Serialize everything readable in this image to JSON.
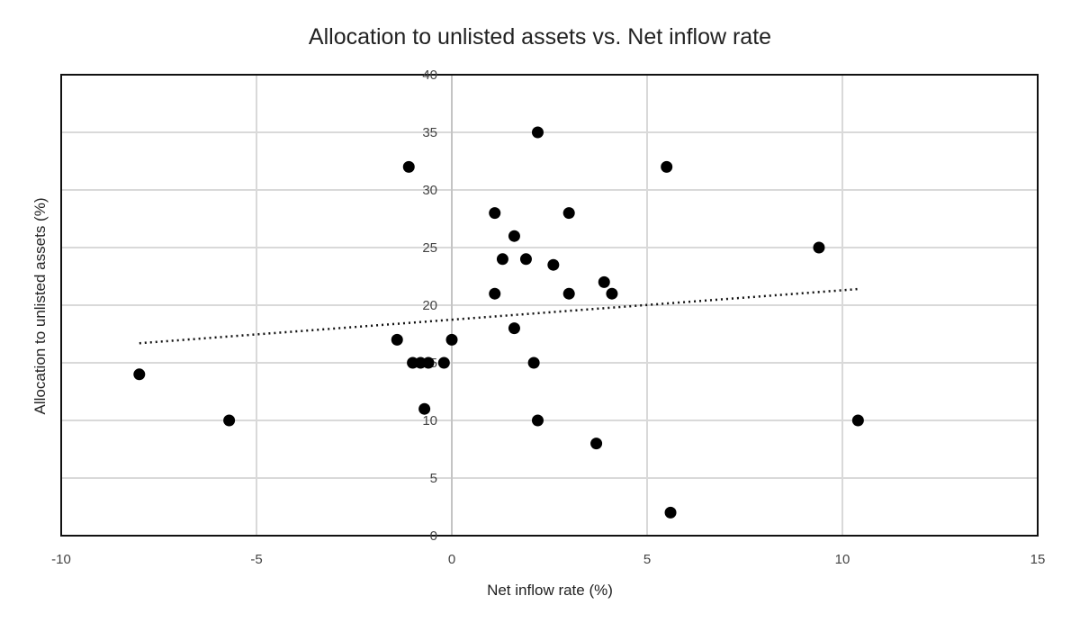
{
  "chart_data": {
    "type": "scatter",
    "title": "Allocation to unlisted assets vs. Net inflow rate",
    "xlabel": "Net inflow rate (%)",
    "ylabel": "Allocation to unlisted assets (%)",
    "xlim": [
      -10,
      15
    ],
    "ylim": [
      0,
      40
    ],
    "x_ticks": [
      -10,
      -5,
      0,
      5,
      10,
      15
    ],
    "y_ticks": [
      0,
      5,
      10,
      15,
      20,
      25,
      30,
      35,
      40
    ],
    "grid": true,
    "legend": "none",
    "marker_color": "#000000",
    "trendline": {
      "style": "dotted",
      "color": "#111111",
      "points": [
        [
          -8.0,
          16.7
        ],
        [
          10.4,
          21.4
        ]
      ]
    },
    "points": [
      {
        "x": -8.0,
        "y": 14
      },
      {
        "x": -5.7,
        "y": 10
      },
      {
        "x": -1.1,
        "y": 32
      },
      {
        "x": -1.4,
        "y": 17
      },
      {
        "x": -1.0,
        "y": 15
      },
      {
        "x": -0.8,
        "y": 15
      },
      {
        "x": -0.6,
        "y": 15
      },
      {
        "x": -0.7,
        "y": 11
      },
      {
        "x": -0.2,
        "y": 15
      },
      {
        "x": 0.0,
        "y": 17
      },
      {
        "x": 1.1,
        "y": 28
      },
      {
        "x": 1.1,
        "y": 21
      },
      {
        "x": 1.3,
        "y": 24
      },
      {
        "x": 1.6,
        "y": 26
      },
      {
        "x": 1.6,
        "y": 18
      },
      {
        "x": 1.9,
        "y": 24
      },
      {
        "x": 2.2,
        "y": 35
      },
      {
        "x": 2.1,
        "y": 15
      },
      {
        "x": 2.2,
        "y": 10
      },
      {
        "x": 2.6,
        "y": 23.5
      },
      {
        "x": 3.0,
        "y": 28
      },
      {
        "x": 3.0,
        "y": 21
      },
      {
        "x": 3.7,
        "y": 8
      },
      {
        "x": 3.9,
        "y": 22
      },
      {
        "x": 4.1,
        "y": 21
      },
      {
        "x": 5.5,
        "y": 32
      },
      {
        "x": 5.6,
        "y": 2
      },
      {
        "x": 9.4,
        "y": 25
      },
      {
        "x": 10.4,
        "y": 10
      }
    ]
  }
}
